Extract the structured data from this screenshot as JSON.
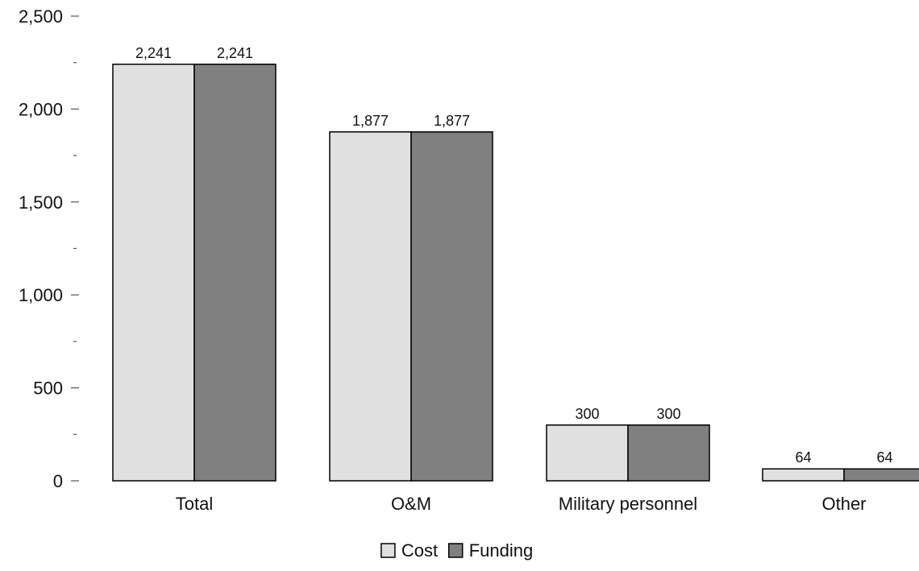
{
  "chart_data": {
    "type": "bar",
    "categories": [
      "Total",
      "O&M",
      "Military personnel",
      "Other"
    ],
    "series": [
      {
        "name": "Cost",
        "values": [
          2241,
          1877,
          300,
          64
        ],
        "color": "#e0e0e0"
      },
      {
        "name": "Funding",
        "values": [
          2241,
          1877,
          300,
          64
        ],
        "color": "#808080"
      }
    ],
    "data_labels": [
      [
        "2,241",
        "1,877",
        "300",
        "64"
      ],
      [
        "2,241",
        "1,877",
        "300",
        "64"
      ]
    ],
    "y_ticks": [
      {
        "value": 0,
        "label": "0"
      },
      {
        "value": 500,
        "label": "500"
      },
      {
        "value": 1000,
        "label": "1,000"
      },
      {
        "value": 1500,
        "label": "1,500"
      },
      {
        "value": 2000,
        "label": "2,000"
      },
      {
        "value": 2500,
        "label": "2,500"
      }
    ],
    "y_minor_ticks": [
      250,
      750,
      1250,
      1750,
      2250
    ],
    "ylim": [
      0,
      2500
    ],
    "title": "",
    "xlabel": "",
    "ylabel": "",
    "grid": false,
    "legend_position": "bottom-center",
    "bar_outline_color": "#000000",
    "axis_tick_color": "#555555"
  }
}
